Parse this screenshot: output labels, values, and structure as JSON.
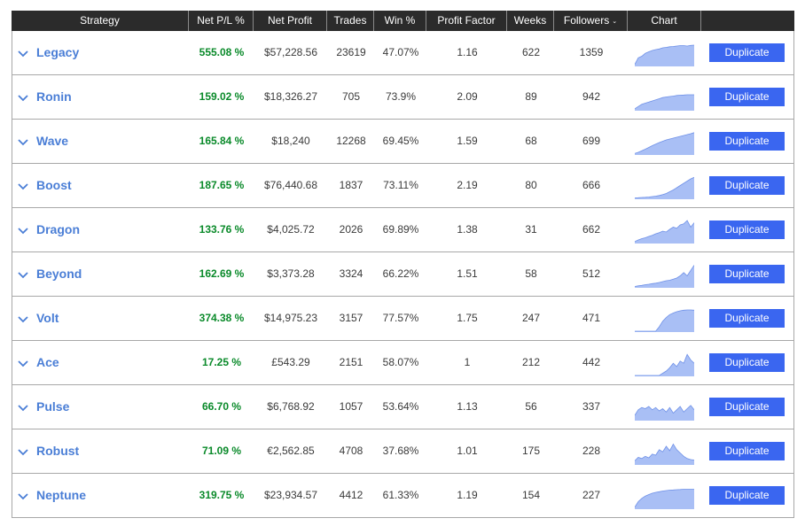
{
  "columns": [
    {
      "key": "strategy",
      "label": "Strategy"
    },
    {
      "key": "pl",
      "label": "Net P/L %"
    },
    {
      "key": "profit",
      "label": "Net Profit"
    },
    {
      "key": "trades",
      "label": "Trades"
    },
    {
      "key": "win",
      "label": "Win %"
    },
    {
      "key": "pf",
      "label": "Profit Factor"
    },
    {
      "key": "weeks",
      "label": "Weeks"
    },
    {
      "key": "followers",
      "label": "Followers"
    },
    {
      "key": "chart",
      "label": "Chart"
    }
  ],
  "sort_indicator": "chevron-down-icon",
  "duplicate_label": "Duplicate",
  "colors": {
    "header_bg": "#2b2b2b",
    "name": "#4a7ed6",
    "pl": "#0a8a2a",
    "button": "#3a66f0",
    "chart_fill": "#a9bff5",
    "chart_line": "#6f91e8"
  },
  "rows": [
    {
      "name": "Legacy",
      "pl": "555.08 %",
      "profit": "$57,228.56",
      "trades": "23619",
      "win": "47.07%",
      "pf": "1.16",
      "weeks": "622",
      "followers": "1359",
      "chart": [
        0.05,
        0.35,
        0.42,
        0.55,
        0.62,
        0.68,
        0.72,
        0.75,
        0.8,
        0.82,
        0.85,
        0.86,
        0.88,
        0.9,
        0.9,
        0.88,
        0.91,
        0.92
      ]
    },
    {
      "name": "Ronin",
      "pl": "159.02 %",
      "profit": "$18,326.27",
      "trades": "705",
      "win": "73.9%",
      "pf": "2.09",
      "weeks": "89",
      "followers": "942",
      "chart": [
        0.05,
        0.15,
        0.25,
        0.3,
        0.35,
        0.4,
        0.45,
        0.5,
        0.55,
        0.58,
        0.6,
        0.62,
        0.65,
        0.66,
        0.67,
        0.68,
        0.68,
        0.68
      ]
    },
    {
      "name": "Wave",
      "pl": "165.84 %",
      "profit": "$18,240",
      "trades": "12268",
      "win": "69.45%",
      "pf": "1.59",
      "weeks": "68",
      "followers": "699",
      "chart": [
        0.03,
        0.08,
        0.15,
        0.22,
        0.3,
        0.38,
        0.45,
        0.52,
        0.58,
        0.64,
        0.68,
        0.72,
        0.76,
        0.8,
        0.84,
        0.88,
        0.92,
        0.97
      ]
    },
    {
      "name": "Boost",
      "pl": "187.65 %",
      "profit": "$76,440.68",
      "trades": "1837",
      "win": "73.11%",
      "pf": "2.19",
      "weeks": "80",
      "followers": "666",
      "chart": [
        0.02,
        0.03,
        0.04,
        0.05,
        0.06,
        0.08,
        0.1,
        0.13,
        0.17,
        0.22,
        0.3,
        0.38,
        0.48,
        0.58,
        0.68,
        0.78,
        0.88,
        0.95
      ]
    },
    {
      "name": "Dragon",
      "pl": "133.76 %",
      "profit": "$4,025.72",
      "trades": "2026",
      "win": "69.89%",
      "pf": "1.38",
      "weeks": "31",
      "followers": "662",
      "chart": [
        0.05,
        0.12,
        0.18,
        0.22,
        0.28,
        0.33,
        0.4,
        0.45,
        0.52,
        0.48,
        0.6,
        0.7,
        0.65,
        0.8,
        0.85,
        1.0,
        0.7,
        0.9
      ]
    },
    {
      "name": "Beyond",
      "pl": "162.69 %",
      "profit": "$3,373.28",
      "trades": "3324",
      "win": "66.22%",
      "pf": "1.51",
      "weeks": "58",
      "followers": "512",
      "chart": [
        0.02,
        0.05,
        0.07,
        0.1,
        0.12,
        0.15,
        0.17,
        0.2,
        0.24,
        0.28,
        0.3,
        0.35,
        0.4,
        0.5,
        0.65,
        0.5,
        0.75,
        0.98
      ]
    },
    {
      "name": "Volt",
      "pl": "374.38 %",
      "profit": "$14,975.23",
      "trades": "3157",
      "win": "77.57%",
      "pf": "1.75",
      "weeks": "247",
      "followers": "471",
      "chart": [
        0.0,
        0.0,
        0.0,
        0.0,
        0.0,
        0.0,
        0.0,
        0.2,
        0.45,
        0.62,
        0.75,
        0.82,
        0.88,
        0.92,
        0.95,
        0.96,
        0.96,
        0.95
      ]
    },
    {
      "name": "Ace",
      "pl": "17.25 %",
      "profit": "£543.29",
      "trades": "2151",
      "win": "58.07%",
      "pf": "1",
      "weeks": "212",
      "followers": "442",
      "chart": [
        0.0,
        0.0,
        0.0,
        0.0,
        0.0,
        0.0,
        0.0,
        0.0,
        0.1,
        0.2,
        0.35,
        0.55,
        0.4,
        0.65,
        0.55,
        0.95,
        0.7,
        0.55
      ]
    },
    {
      "name": "Pulse",
      "pl": "66.70 %",
      "profit": "$6,768.92",
      "trades": "1057",
      "win": "53.64%",
      "pf": "1.13",
      "weeks": "56",
      "followers": "337",
      "chart": [
        0.2,
        0.45,
        0.55,
        0.5,
        0.6,
        0.45,
        0.55,
        0.4,
        0.5,
        0.35,
        0.55,
        0.3,
        0.45,
        0.6,
        0.35,
        0.5,
        0.65,
        0.45
      ]
    },
    {
      "name": "Robust",
      "pl": "71.09 %",
      "profit": "€2,562.85",
      "trades": "4708",
      "win": "37.68%",
      "pf": "1.01",
      "weeks": "175",
      "followers": "228",
      "chart": [
        0.15,
        0.3,
        0.25,
        0.35,
        0.28,
        0.45,
        0.4,
        0.65,
        0.55,
        0.8,
        0.6,
        0.9,
        0.65,
        0.5,
        0.35,
        0.25,
        0.2,
        0.18
      ]
    },
    {
      "name": "Neptune",
      "pl": "319.75 %",
      "profit": "$23,934.57",
      "trades": "4412",
      "win": "61.33%",
      "pf": "1.19",
      "weeks": "154",
      "followers": "227",
      "chart": [
        0.05,
        0.3,
        0.45,
        0.55,
        0.62,
        0.68,
        0.72,
        0.75,
        0.78,
        0.8,
        0.82,
        0.83,
        0.84,
        0.85,
        0.86,
        0.86,
        0.86,
        0.86
      ]
    }
  ]
}
